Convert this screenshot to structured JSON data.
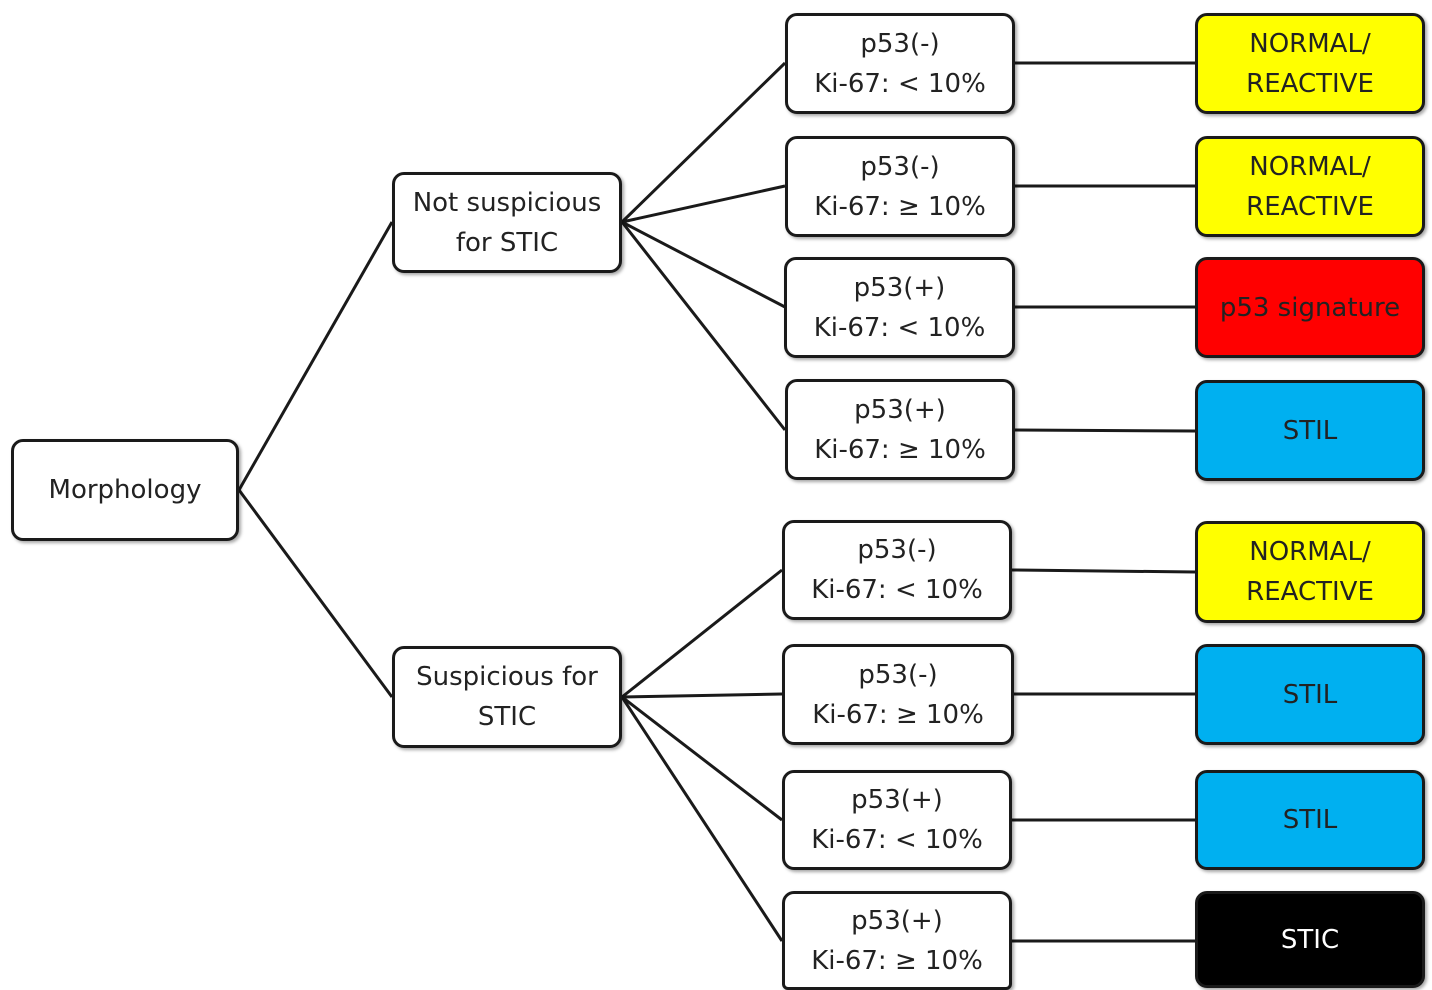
{
  "root": {
    "label": "Morphology"
  },
  "branches": [
    {
      "lines": [
        "Not suspicious",
        "for STIC"
      ],
      "tests": [
        {
          "p53": "p53(-)",
          "ki67": "Ki-67: < 10%",
          "outcome": [
            "NORMAL/",
            "REACTIVE"
          ],
          "color": "#ffff00"
        },
        {
          "p53": "p53(-)",
          "ki67": "Ki-67: ≥ 10%",
          "outcome": [
            "NORMAL/",
            "REACTIVE"
          ],
          "color": "#ffff00"
        },
        {
          "p53": "p53(+)",
          "ki67": "Ki-67: < 10%",
          "outcome": [
            "p53 signature"
          ],
          "color": "#ff0000"
        },
        {
          "p53": "p53(+)",
          "ki67": "Ki-67: ≥ 10%",
          "outcome": [
            "STIL"
          ],
          "color": "#00b0f0"
        }
      ]
    },
    {
      "lines": [
        "Suspicious for",
        "STIC"
      ],
      "tests": [
        {
          "p53": "p53(-)",
          "ki67": "Ki-67: < 10%",
          "outcome": [
            "NORMAL/",
            "REACTIVE"
          ],
          "color": "#ffff00"
        },
        {
          "p53": "p53(-)",
          "ki67": "Ki-67: ≥ 10%",
          "outcome": [
            "STIL"
          ],
          "color": "#00b0f0"
        },
        {
          "p53": "p53(+)",
          "ki67": "Ki-67: < 10%",
          "outcome": [
            "STIL"
          ],
          "color": "#00b0f0"
        },
        {
          "p53": "p53(+)",
          "ki67": "Ki-67: ≥ 10%",
          "outcome": [
            "STIC"
          ],
          "color": "#000000"
        }
      ]
    }
  ]
}
